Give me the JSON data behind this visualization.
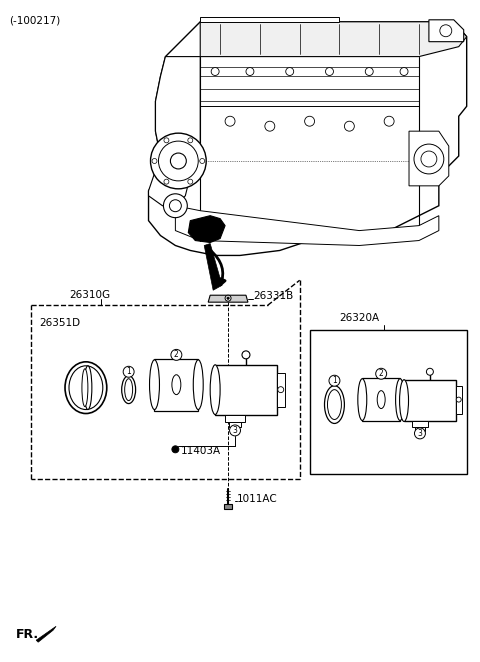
{
  "bg_color": "#ffffff",
  "lc": "#000000",
  "figsize": [
    4.8,
    6.62
  ],
  "dpi": 100,
  "labels": {
    "top_left": "(-100217)",
    "label_26310G": "26310G",
    "label_26351D": "26351D",
    "label_26331B": "26331B",
    "label_26320A": "26320A",
    "label_11403A": "11403A",
    "label_1011AC": "1011AC",
    "label_FR": "FR."
  },
  "engine_scale": 1.0
}
